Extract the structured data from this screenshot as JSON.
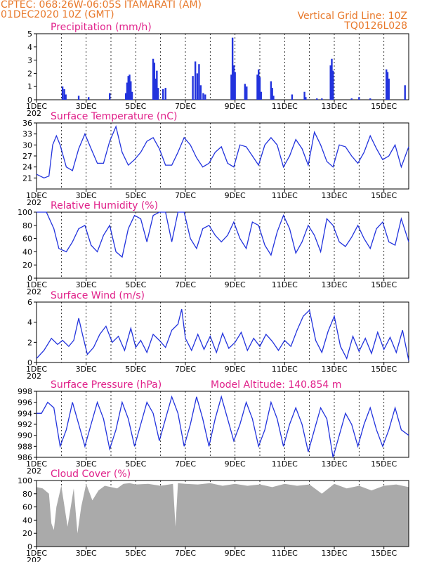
{
  "header": {
    "line1_left": "CPTEC:   068:26W-06:05S   ITAMARATI (AM)",
    "line2_left": "01DEC2020 10Z (GMT)",
    "line1_right": "Vertical Grid Line: 10Z",
    "line2_right": "TQ0126L028"
  },
  "colors": {
    "header": "#e8792b",
    "panel_title": "#e0218a",
    "line": "#2233dd",
    "bar": "#2233dd",
    "cloud": "#aaaaaa",
    "grid": "#000000"
  },
  "x_axis": {
    "start": "01DEC2020 10Z",
    "end": "16DEC2020 10Z",
    "tick_labels": [
      "1DEC",
      "3DEC",
      "5DEC",
      "7DEC",
      "9DEC",
      "11DEC",
      "13DEC",
      "15DEC"
    ],
    "tick_days": [
      0,
      2,
      4,
      6,
      8,
      10,
      12,
      14
    ],
    "year_stub": "202",
    "vertical_grid_lines_days": [
      1,
      2,
      3,
      4,
      5,
      6,
      7,
      8,
      9,
      10,
      11,
      12,
      13,
      14
    ]
  },
  "chart_data": [
    {
      "type": "bar",
      "title": "Precipitation (mm/h)",
      "ylim": [
        0,
        5
      ],
      "yticks": [
        0,
        1,
        2,
        3,
        4,
        5
      ],
      "bars": [
        {
          "day": 1.05,
          "value": 1.0
        },
        {
          "day": 1.12,
          "value": 0.8
        },
        {
          "day": 1.18,
          "value": 0.4
        },
        {
          "day": 1.7,
          "value": 0.3
        },
        {
          "day": 2.1,
          "value": 0.2
        },
        {
          "day": 2.95,
          "value": 0.5
        },
        {
          "day": 3.6,
          "value": 0.5
        },
        {
          "day": 3.65,
          "value": 1.3
        },
        {
          "day": 3.7,
          "value": 1.8
        },
        {
          "day": 3.75,
          "value": 1.9
        },
        {
          "day": 3.8,
          "value": 1.4
        },
        {
          "day": 3.85,
          "value": 0.6
        },
        {
          "day": 4.7,
          "value": 3.1
        },
        {
          "day": 4.75,
          "value": 2.8
        },
        {
          "day": 4.8,
          "value": 1.6
        },
        {
          "day": 4.85,
          "value": 2.2
        },
        {
          "day": 4.9,
          "value": 0.9
        },
        {
          "day": 5.1,
          "value": 0.8
        },
        {
          "day": 5.2,
          "value": 0.9
        },
        {
          "day": 6.3,
          "value": 1.8
        },
        {
          "day": 6.4,
          "value": 2.9
        },
        {
          "day": 6.48,
          "value": 2.0
        },
        {
          "day": 6.55,
          "value": 2.7
        },
        {
          "day": 6.62,
          "value": 1.1
        },
        {
          "day": 6.72,
          "value": 0.5
        },
        {
          "day": 6.8,
          "value": 0.4
        },
        {
          "day": 7.85,
          "value": 1.9
        },
        {
          "day": 7.9,
          "value": 4.7
        },
        {
          "day": 7.95,
          "value": 2.6
        },
        {
          "day": 8.0,
          "value": 2.1
        },
        {
          "day": 8.4,
          "value": 1.2
        },
        {
          "day": 8.47,
          "value": 1.0
        },
        {
          "day": 8.9,
          "value": 1.9
        },
        {
          "day": 8.95,
          "value": 2.3
        },
        {
          "day": 9.0,
          "value": 1.7
        },
        {
          "day": 9.05,
          "value": 0.6
        },
        {
          "day": 9.45,
          "value": 1.4
        },
        {
          "day": 9.5,
          "value": 0.9
        },
        {
          "day": 9.55,
          "value": 0.3
        },
        {
          "day": 10.3,
          "value": 0.4
        },
        {
          "day": 10.8,
          "value": 0.6
        },
        {
          "day": 10.85,
          "value": 0.2
        },
        {
          "day": 11.3,
          "value": 0.1
        },
        {
          "day": 11.5,
          "value": 0.1
        },
        {
          "day": 11.85,
          "value": 2.6
        },
        {
          "day": 11.9,
          "value": 3.1
        },
        {
          "day": 11.95,
          "value": 2.2
        },
        {
          "day": 13.0,
          "value": 0.2
        },
        {
          "day": 12.7,
          "value": 0.1
        },
        {
          "day": 13.45,
          "value": 0.1
        },
        {
          "day": 14.1,
          "value": 2.3
        },
        {
          "day": 14.15,
          "value": 2.1
        },
        {
          "day": 14.2,
          "value": 1.6
        },
        {
          "day": 14.85,
          "value": 1.1
        }
      ]
    },
    {
      "type": "line",
      "title": "Surface Temperature (nC)",
      "ylim": [
        18,
        36
      ],
      "yticks": [
        21,
        24,
        27,
        30,
        33,
        36
      ],
      "x": [
        0,
        0.3,
        0.5,
        0.65,
        0.8,
        0.95,
        1.2,
        1.45,
        1.7,
        1.95,
        2.2,
        2.45,
        2.7,
        2.95,
        3.2,
        3.45,
        3.7,
        3.95,
        4.2,
        4.45,
        4.7,
        4.95,
        5.2,
        5.45,
        5.7,
        5.95,
        6.2,
        6.45,
        6.7,
        6.95,
        7.2,
        7.45,
        7.7,
        7.95,
        8.2,
        8.45,
        8.7,
        8.95,
        9.2,
        9.45,
        9.7,
        9.95,
        10.2,
        10.45,
        10.7,
        10.95,
        11.2,
        11.45,
        11.7,
        11.95,
        12.2,
        12.45,
        12.7,
        12.95,
        13.2,
        13.45,
        13.7,
        13.95,
        14.2,
        14.45,
        14.7,
        15.0
      ],
      "y": [
        22,
        21,
        21.5,
        30,
        32.5,
        30,
        24,
        23,
        29,
        33,
        29,
        25,
        25,
        31,
        35,
        28,
        24.5,
        26,
        28,
        31,
        32,
        29,
        24.5,
        24.5,
        28,
        32,
        30,
        26.5,
        24,
        25,
        28,
        29.5,
        25,
        24,
        30,
        29.5,
        27,
        24.5,
        30,
        32,
        30,
        24,
        27,
        31.5,
        29,
        24.5,
        33.5,
        30,
        25.5,
        24,
        30,
        29.5,
        27,
        25,
        28,
        32.5,
        29,
        26,
        27,
        30,
        24,
        29.5
      ]
    },
    {
      "type": "line",
      "title": "Relative Humidity (%)",
      "ylim": [
        0,
        100
      ],
      "yticks": [
        0,
        20,
        40,
        60,
        80,
        100
      ],
      "x": [
        0,
        0.4,
        0.7,
        0.9,
        1.2,
        1.45,
        1.7,
        1.95,
        2.2,
        2.45,
        2.7,
        2.95,
        3.2,
        3.45,
        3.7,
        3.95,
        4.2,
        4.45,
        4.7,
        4.95,
        5.2,
        5.45,
        5.7,
        5.95,
        6.2,
        6.45,
        6.7,
        6.95,
        7.2,
        7.45,
        7.7,
        7.95,
        8.2,
        8.45,
        8.7,
        8.95,
        9.2,
        9.45,
        9.7,
        9.95,
        10.2,
        10.45,
        10.7,
        10.95,
        11.2,
        11.45,
        11.7,
        11.95,
        12.2,
        12.45,
        12.7,
        12.95,
        13.2,
        13.45,
        13.7,
        13.95,
        14.2,
        14.45,
        14.7,
        15.0
      ],
      "y": [
        100,
        100,
        75,
        45,
        40,
        55,
        75,
        80,
        50,
        40,
        65,
        80,
        40,
        32,
        75,
        95,
        90,
        55,
        95,
        100,
        100,
        55,
        100,
        100,
        60,
        45,
        75,
        80,
        65,
        55,
        65,
        85,
        60,
        45,
        85,
        80,
        50,
        35,
        70,
        95,
        75,
        38,
        55,
        80,
        65,
        40,
        90,
        80,
        55,
        48,
        62,
        80,
        60,
        45,
        75,
        85,
        55,
        50,
        90,
        55
      ]
    },
    {
      "type": "line",
      "title": "Surface Wind (m/s)",
      "ylim": [
        0,
        6
      ],
      "yticks": [
        0,
        2,
        4,
        6
      ],
      "x": [
        0,
        0.3,
        0.6,
        0.85,
        1.05,
        1.3,
        1.5,
        1.7,
        1.85,
        2.05,
        2.3,
        2.55,
        2.8,
        3.05,
        3.3,
        3.55,
        3.8,
        4.0,
        4.2,
        4.45,
        4.7,
        4.95,
        5.2,
        5.45,
        5.7,
        5.85,
        6.0,
        6.25,
        6.5,
        6.75,
        7.0,
        7.25,
        7.5,
        7.75,
        8.0,
        8.25,
        8.5,
        8.75,
        9.0,
        9.25,
        9.5,
        9.75,
        10.0,
        10.25,
        10.5,
        10.75,
        11.0,
        11.25,
        11.5,
        11.75,
        12.0,
        12.25,
        12.5,
        12.75,
        13.0,
        13.25,
        13.5,
        13.75,
        14.0,
        14.25,
        14.5,
        14.75,
        15.0
      ],
      "y": [
        0.4,
        1.2,
        2.4,
        1.8,
        2.2,
        1.6,
        2.2,
        4.4,
        2.8,
        0.8,
        1.5,
        2.8,
        3.6,
        2.0,
        2.6,
        1.2,
        3.4,
        1.5,
        2.2,
        1.0,
        2.8,
        2.2,
        1.5,
        3.2,
        3.8,
        5.3,
        2.4,
        1.2,
        2.8,
        1.3,
        2.6,
        1.0,
        2.9,
        1.4,
        2.0,
        3.0,
        1.2,
        2.4,
        1.6,
        2.8,
        2.1,
        1.2,
        2.2,
        1.6,
        3.2,
        4.6,
        5.2,
        2.2,
        1.0,
        3.1,
        4.6,
        1.6,
        0.4,
        2.6,
        1.1,
        2.4,
        0.9,
        3.0,
        1.3,
        2.5,
        1.0,
        3.2,
        0.2
      ]
    },
    {
      "type": "line",
      "title": "Surface Pressure (hPa)",
      "subtitle": "Model Altitude: 140.854  m",
      "ylim": [
        986,
        998
      ],
      "yticks": [
        986,
        988,
        990,
        992,
        994,
        996,
        998
      ],
      "x": [
        0,
        0.2,
        0.45,
        0.7,
        0.95,
        1.2,
        1.45,
        1.7,
        1.95,
        2.2,
        2.45,
        2.7,
        2.95,
        3.2,
        3.45,
        3.7,
        3.95,
        4.2,
        4.45,
        4.7,
        4.95,
        5.2,
        5.45,
        5.7,
        5.95,
        6.2,
        6.45,
        6.7,
        6.95,
        7.2,
        7.45,
        7.7,
        7.95,
        8.2,
        8.45,
        8.7,
        8.95,
        9.2,
        9.45,
        9.7,
        9.95,
        10.2,
        10.45,
        10.7,
        10.95,
        11.2,
        11.45,
        11.7,
        11.95,
        12.2,
        12.45,
        12.7,
        12.95,
        13.2,
        13.45,
        13.7,
        13.95,
        14.2,
        14.45,
        14.7,
        15.0
      ],
      "y": [
        994,
        994,
        996,
        995,
        988,
        991,
        996,
        992,
        988,
        992,
        996,
        993,
        987.5,
        991,
        996,
        993,
        988,
        992,
        996,
        994,
        989,
        993,
        997,
        994,
        988,
        992,
        997,
        993,
        988,
        993,
        997,
        993,
        989,
        992,
        996,
        993,
        988,
        991,
        996,
        993,
        988,
        992,
        995,
        992,
        987,
        991,
        995,
        993,
        986,
        990,
        994,
        992,
        988,
        992,
        995,
        991,
        988,
        991,
        995,
        991,
        990
      ]
    },
    {
      "type": "area",
      "title": "Cloud Cover (%)",
      "ylim": [
        0,
        100
      ],
      "yticks": [
        0,
        20,
        40,
        60,
        80,
        100
      ],
      "x": [
        0,
        0.25,
        0.5,
        0.6,
        0.7,
        0.8,
        1.0,
        1.25,
        1.5,
        1.65,
        1.8,
        2.0,
        2.25,
        2.5,
        2.75,
        3.0,
        3.25,
        3.5,
        3.75,
        4.0,
        4.5,
        5.0,
        5.5,
        5.6,
        5.7,
        6.0,
        6.5,
        7.0,
        7.5,
        8.0,
        8.5,
        9.0,
        9.5,
        10.0,
        10.5,
        11.0,
        11.5,
        12.0,
        12.5,
        13.0,
        13.5,
        14.0,
        14.5,
        15.0
      ],
      "y": [
        90,
        88,
        80,
        35,
        25,
        60,
        92,
        30,
        88,
        20,
        60,
        95,
        70,
        85,
        92,
        90,
        88,
        95,
        96,
        94,
        95,
        92,
        95,
        30,
        96,
        95,
        94,
        96,
        92,
        95,
        92,
        94,
        90,
        95,
        92,
        94,
        80,
        95,
        88,
        92,
        85,
        92,
        94,
        90
      ]
    }
  ]
}
